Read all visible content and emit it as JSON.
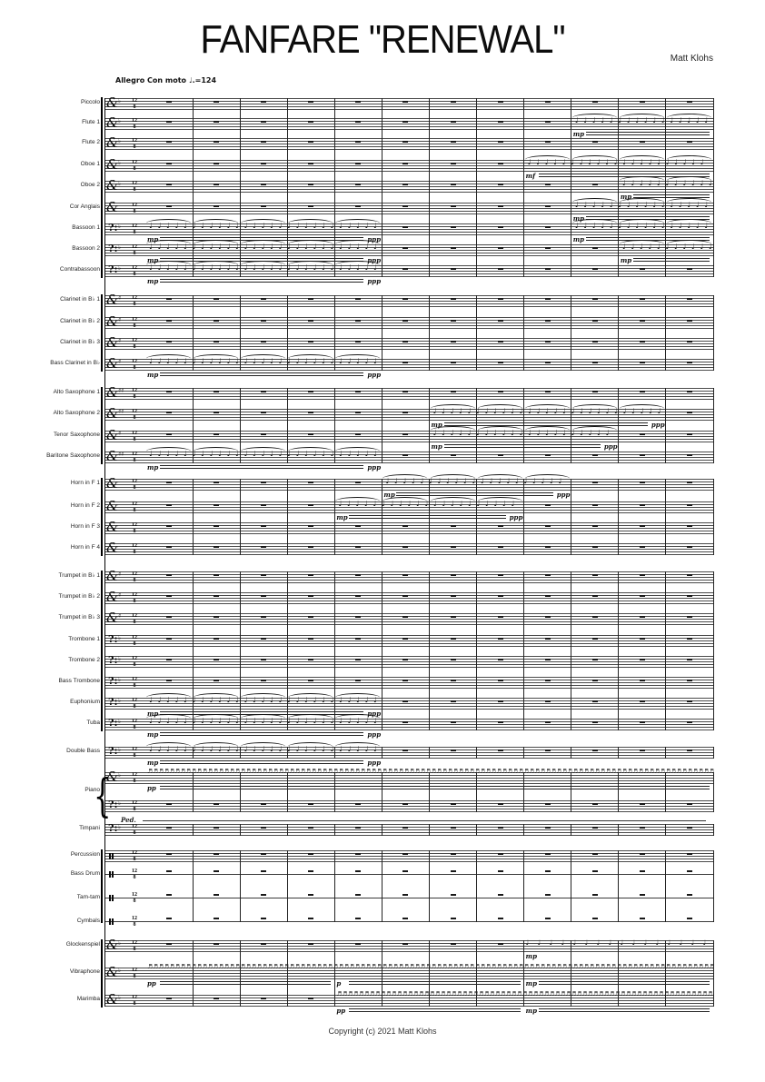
{
  "page": {
    "title": "FANFARE \"RENEWAL\"",
    "composer": "Matt Klohs",
    "tempo": "Allegro Con moto ♩.=124",
    "copyright": "Copyright (c) 2021 Matt Klohs"
  },
  "score": {
    "measures": 12,
    "time_signature": {
      "upper": "12",
      "lower": "8"
    },
    "staves": [
      {
        "label": "Piccolo",
        "clef": "treble",
        "lines": 5,
        "key": "b",
        "group": 1,
        "segments": [
          {
            "type": "rests",
            "from": 1,
            "to": 12
          }
        ]
      },
      {
        "label": "Flute 1",
        "clef": "treble",
        "lines": 5,
        "key": "b",
        "group": 1,
        "segments": [
          {
            "type": "rests",
            "from": 1,
            "to": 9
          },
          {
            "type": "phrase",
            "from": 10,
            "to": 12,
            "dyn": "mp"
          }
        ]
      },
      {
        "label": "Flute 2",
        "clef": "treble",
        "lines": 5,
        "key": "b",
        "group": 1,
        "segments": [
          {
            "type": "rests",
            "from": 1,
            "to": 12
          }
        ]
      },
      {
        "label": "Oboe 1",
        "clef": "treble",
        "lines": 5,
        "key": "b",
        "group": 1,
        "segments": [
          {
            "type": "rests",
            "from": 1,
            "to": 8
          },
          {
            "type": "phrase",
            "from": 9,
            "to": 12,
            "dyn": "mf"
          }
        ]
      },
      {
        "label": "Oboe 2",
        "clef": "treble",
        "lines": 5,
        "key": "b",
        "group": 1,
        "segments": [
          {
            "type": "rests",
            "from": 1,
            "to": 10
          },
          {
            "type": "phrase",
            "from": 11,
            "to": 12,
            "dyn": "mp"
          }
        ]
      },
      {
        "label": "Cor Anglais",
        "clef": "treble",
        "lines": 5,
        "key": "",
        "group": 1,
        "segments": [
          {
            "type": "rests",
            "from": 1,
            "to": 9
          },
          {
            "type": "phrase",
            "from": 10,
            "to": 12,
            "dyn": "mp"
          }
        ]
      },
      {
        "label": "Bassoon 1",
        "clef": "bass",
        "lines": 5,
        "key": "b",
        "group": 1,
        "segments": [
          {
            "type": "phrase",
            "from": 1,
            "to": 5,
            "dyn": "mp",
            "end_dyn": "ppp"
          },
          {
            "type": "rests",
            "from": 6,
            "to": 9
          },
          {
            "type": "phrase",
            "from": 10,
            "to": 12,
            "dyn": "mp"
          }
        ]
      },
      {
        "label": "Bassoon 2",
        "clef": "bass",
        "lines": 5,
        "key": "b",
        "group": 1,
        "segments": [
          {
            "type": "phrase",
            "from": 1,
            "to": 5,
            "dyn": "mp",
            "end_dyn": "ppp"
          },
          {
            "type": "rests",
            "from": 6,
            "to": 10
          },
          {
            "type": "phrase",
            "from": 11,
            "to": 12,
            "dyn": "mp"
          }
        ]
      },
      {
        "label": "Contrabassoon",
        "clef": "bass",
        "lines": 5,
        "key": "b",
        "group": 1,
        "segments": [
          {
            "type": "phrase",
            "from": 1,
            "to": 5,
            "dyn": "mp",
            "end_dyn": "ppp"
          },
          {
            "type": "rests",
            "from": 6,
            "to": 12
          }
        ]
      },
      {
        "label": "Clarinet in B♭ 1",
        "clef": "treble",
        "lines": 5,
        "key": "#",
        "group": 2,
        "segments": [
          {
            "type": "rests",
            "from": 1,
            "to": 12
          }
        ]
      },
      {
        "label": "Clarinet in B♭ 2",
        "clef": "treble",
        "lines": 5,
        "key": "#",
        "group": 2,
        "segments": [
          {
            "type": "rests",
            "from": 1,
            "to": 12
          }
        ]
      },
      {
        "label": "Clarinet in B♭ 3",
        "clef": "treble",
        "lines": 5,
        "key": "#",
        "group": 2,
        "segments": [
          {
            "type": "rests",
            "from": 1,
            "to": 12
          }
        ]
      },
      {
        "label": "Bass Clarinet in B♭",
        "clef": "treble",
        "lines": 5,
        "key": "#",
        "group": 2,
        "segments": [
          {
            "type": "phrase",
            "from": 1,
            "to": 5,
            "dyn": "mp",
            "end_dyn": "ppp"
          },
          {
            "type": "rests",
            "from": 6,
            "to": 12
          }
        ]
      },
      {
        "label": "Alto Saxophone 1",
        "clef": "treble",
        "lines": 5,
        "key": "##",
        "group": 3,
        "segments": [
          {
            "type": "rests",
            "from": 1,
            "to": 12
          }
        ]
      },
      {
        "label": "Alto Saxophone 2",
        "clef": "treble",
        "lines": 5,
        "key": "##",
        "group": 3,
        "segments": [
          {
            "type": "rests",
            "from": 1,
            "to": 6
          },
          {
            "type": "phrase",
            "from": 7,
            "to": 11,
            "dyn": "mp",
            "end_dyn": "ppp"
          },
          {
            "type": "rests",
            "from": 12,
            "to": 12
          }
        ]
      },
      {
        "label": "Tenor Saxophone",
        "clef": "treble",
        "lines": 5,
        "key": "#",
        "group": 3,
        "segments": [
          {
            "type": "rests",
            "from": 1,
            "to": 6
          },
          {
            "type": "phrase",
            "from": 7,
            "to": 10,
            "dyn": "mp",
            "end_dyn": "ppp"
          },
          {
            "type": "rests",
            "from": 11,
            "to": 12
          }
        ]
      },
      {
        "label": "Baritone Saxophone",
        "clef": "treble",
        "lines": 5,
        "key": "##",
        "group": 3,
        "segments": [
          {
            "type": "phrase",
            "from": 1,
            "to": 5,
            "dyn": "mp",
            "end_dyn": "ppp"
          },
          {
            "type": "rests",
            "from": 6,
            "to": 12
          }
        ]
      },
      {
        "label": "Horn in F 1",
        "clef": "treble",
        "lines": 5,
        "key": "",
        "group": 4,
        "segments": [
          {
            "type": "rests",
            "from": 1,
            "to": 5
          },
          {
            "type": "phrase",
            "from": 6,
            "to": 9,
            "dyn": "mp",
            "end_dyn": "ppp"
          },
          {
            "type": "rests",
            "from": 10,
            "to": 12
          }
        ]
      },
      {
        "label": "Horn in F 2",
        "clef": "treble",
        "lines": 5,
        "key": "",
        "group": 4,
        "segments": [
          {
            "type": "rests",
            "from": 1,
            "to": 4
          },
          {
            "type": "phrase",
            "from": 5,
            "to": 8,
            "dyn": "mp",
            "end_dyn": "ppp"
          },
          {
            "type": "rests",
            "from": 9,
            "to": 12
          }
        ]
      },
      {
        "label": "Horn in F 3",
        "clef": "treble",
        "lines": 5,
        "key": "",
        "group": 4,
        "segments": [
          {
            "type": "rests",
            "from": 1,
            "to": 12
          }
        ]
      },
      {
        "label": "Horn in F 4",
        "clef": "treble",
        "lines": 5,
        "key": "",
        "group": 4,
        "segments": [
          {
            "type": "rests",
            "from": 1,
            "to": 12
          }
        ]
      },
      {
        "label": "Trumpet in B♭ 1",
        "clef": "treble",
        "lines": 5,
        "key": "#",
        "group": 5,
        "segments": [
          {
            "type": "rests",
            "from": 1,
            "to": 12
          }
        ]
      },
      {
        "label": "Trumpet in B♭ 2",
        "clef": "treble",
        "lines": 5,
        "key": "#",
        "group": 5,
        "segments": [
          {
            "type": "rests",
            "from": 1,
            "to": 12
          }
        ]
      },
      {
        "label": "Trumpet in B♭ 3",
        "clef": "treble",
        "lines": 5,
        "key": "#",
        "group": 5,
        "segments": [
          {
            "type": "rests",
            "from": 1,
            "to": 12
          }
        ]
      },
      {
        "label": "Trombone 1",
        "clef": "bass",
        "lines": 5,
        "key": "b",
        "group": 5,
        "segments": [
          {
            "type": "rests",
            "from": 1,
            "to": 12
          }
        ]
      },
      {
        "label": "Trombone 2",
        "clef": "bass",
        "lines": 5,
        "key": "b",
        "group": 5,
        "segments": [
          {
            "type": "rests",
            "from": 1,
            "to": 12
          }
        ]
      },
      {
        "label": "Bass Trombone",
        "clef": "bass",
        "lines": 5,
        "key": "b",
        "group": 5,
        "segments": [
          {
            "type": "rests",
            "from": 1,
            "to": 12
          }
        ]
      },
      {
        "label": "Euphonium",
        "clef": "bass",
        "lines": 5,
        "key": "b",
        "group": 5,
        "segments": [
          {
            "type": "phrase",
            "from": 1,
            "to": 5,
            "dyn": "mp",
            "end_dyn": "ppp"
          },
          {
            "type": "rests",
            "from": 6,
            "to": 12
          }
        ]
      },
      {
        "label": "Tuba",
        "clef": "bass",
        "lines": 5,
        "key": "b",
        "group": 5,
        "segments": [
          {
            "type": "phrase",
            "from": 1,
            "to": 5,
            "dyn": "mp",
            "end_dyn": "ppp"
          },
          {
            "type": "rests",
            "from": 6,
            "to": 12
          }
        ]
      },
      {
        "label": "Double Bass",
        "clef": "bass",
        "lines": 5,
        "key": "b",
        "group": 6,
        "segments": [
          {
            "type": "phrase",
            "from": 1,
            "to": 5,
            "dyn": "mp",
            "end_dyn": "ppp"
          },
          {
            "type": "rests",
            "from": 6,
            "to": 12
          }
        ]
      },
      {
        "label": "Piano",
        "clef": "treble",
        "lines": 5,
        "key": "b",
        "group": 7,
        "label_offset": 15,
        "segments": [
          {
            "type": "pattern",
            "from": 1,
            "to": 12,
            "density": "dense",
            "dynamics": [
              {
                "m": 1,
                "t": "pp"
              }
            ],
            "cresc": true
          }
        ]
      },
      {
        "label": "",
        "clef": "bass",
        "lines": 5,
        "key": "b",
        "group": 7,
        "pedal": "Ped.",
        "segments": [
          {
            "type": "rests",
            "from": 1,
            "to": 12
          }
        ]
      },
      {
        "label": "Timpani",
        "clef": "bass",
        "lines": 5,
        "key": "b",
        "group": 8,
        "segments": [
          {
            "type": "rests",
            "from": 1,
            "to": 12
          }
        ]
      },
      {
        "label": "Percussion",
        "clef": "perc",
        "lines": 5,
        "key": "",
        "group": 9,
        "segments": [
          {
            "type": "rests",
            "from": 1,
            "to": 12
          }
        ]
      },
      {
        "label": "Bass Drum",
        "clef": "perc",
        "lines": 1,
        "key": "",
        "group": 9,
        "segments": [
          {
            "type": "rests",
            "from": 1,
            "to": 12
          }
        ]
      },
      {
        "label": "Tam-tam",
        "clef": "perc",
        "lines": 1,
        "key": "",
        "group": 9,
        "segments": [
          {
            "type": "rests",
            "from": 1,
            "to": 12
          }
        ]
      },
      {
        "label": "Cymbals",
        "clef": "perc",
        "lines": 1,
        "key": "",
        "group": 9,
        "segments": [
          {
            "type": "rests",
            "from": 1,
            "to": 12
          }
        ]
      },
      {
        "label": "Glockenspiel",
        "clef": "treble",
        "lines": 5,
        "key": "b",
        "group": 10,
        "segments": [
          {
            "type": "rests",
            "from": 1,
            "to": 8
          },
          {
            "type": "pattern",
            "from": 9,
            "to": 12,
            "density": "sparse",
            "dynamics": [
              {
                "m": 9,
                "t": "mp"
              }
            ]
          }
        ]
      },
      {
        "label": "Vibraphone",
        "clef": "treble",
        "lines": 5,
        "key": "b",
        "group": 10,
        "segments": [
          {
            "type": "pattern",
            "from": 1,
            "to": 12,
            "density": "dense",
            "dynamics": [
              {
                "m": 1,
                "t": "pp"
              },
              {
                "m": 5,
                "t": "p"
              },
              {
                "m": 9,
                "t": "mp"
              }
            ],
            "cresc": true
          }
        ]
      },
      {
        "label": "Marimba",
        "clef": "treble",
        "lines": 5,
        "key": "b",
        "group": 10,
        "segments": [
          {
            "type": "rests",
            "from": 1,
            "to": 4
          },
          {
            "type": "pattern",
            "from": 5,
            "to": 12,
            "density": "dense",
            "dynamics": [
              {
                "m": 5,
                "t": "pp"
              },
              {
                "m": 9,
                "t": "mp"
              }
            ],
            "cresc": true
          }
        ]
      }
    ]
  }
}
